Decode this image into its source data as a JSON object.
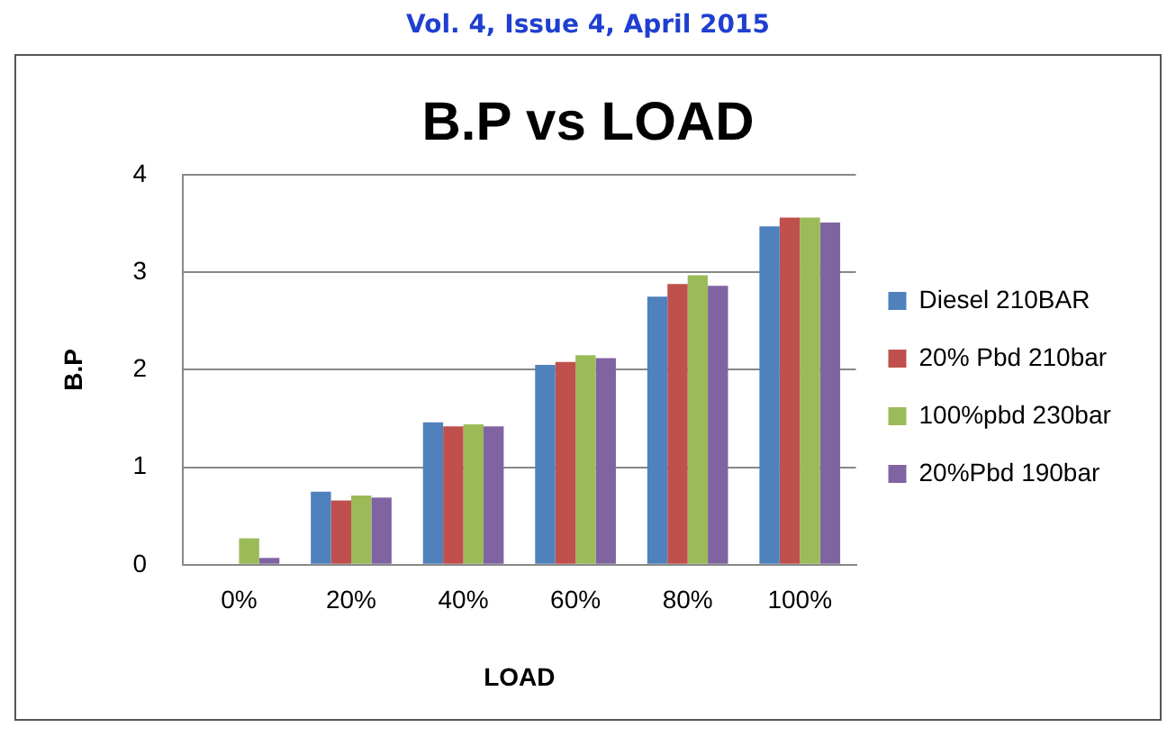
{
  "chart_data": {
    "type": "bar",
    "title": "B.P vs LOAD",
    "xlabel": "LOAD",
    "ylabel": "B.P",
    "annotations": [
      "Vol. 4, Issue 4, April 2015"
    ],
    "categories": [
      "0%",
      "20%",
      "40%",
      "60%",
      "80%",
      "100%"
    ],
    "series": [
      {
        "name": "Diesel 210BAR",
        "color": "#4f81bd",
        "values": [
          0,
          0.75,
          1.46,
          2.05,
          2.75,
          3.47
        ]
      },
      {
        "name": "20% Pbd 210bar",
        "color": "#c0504d",
        "values": [
          0,
          0.66,
          1.42,
          2.08,
          2.88,
          3.56
        ]
      },
      {
        "name": "100%pbd 230bar",
        "color": "#9bbb59",
        "values": [
          0.27,
          0.71,
          1.44,
          2.15,
          2.97,
          3.56
        ]
      },
      {
        "name": "20%Pbd 190bar",
        "color": "#8064a2",
        "values": [
          0.07,
          0.69,
          1.42,
          2.12,
          2.86,
          3.51
        ]
      }
    ],
    "ylim": [
      0,
      4
    ],
    "yticks": [
      0,
      1,
      2,
      3,
      4
    ],
    "grid": "y",
    "legend": "right"
  }
}
